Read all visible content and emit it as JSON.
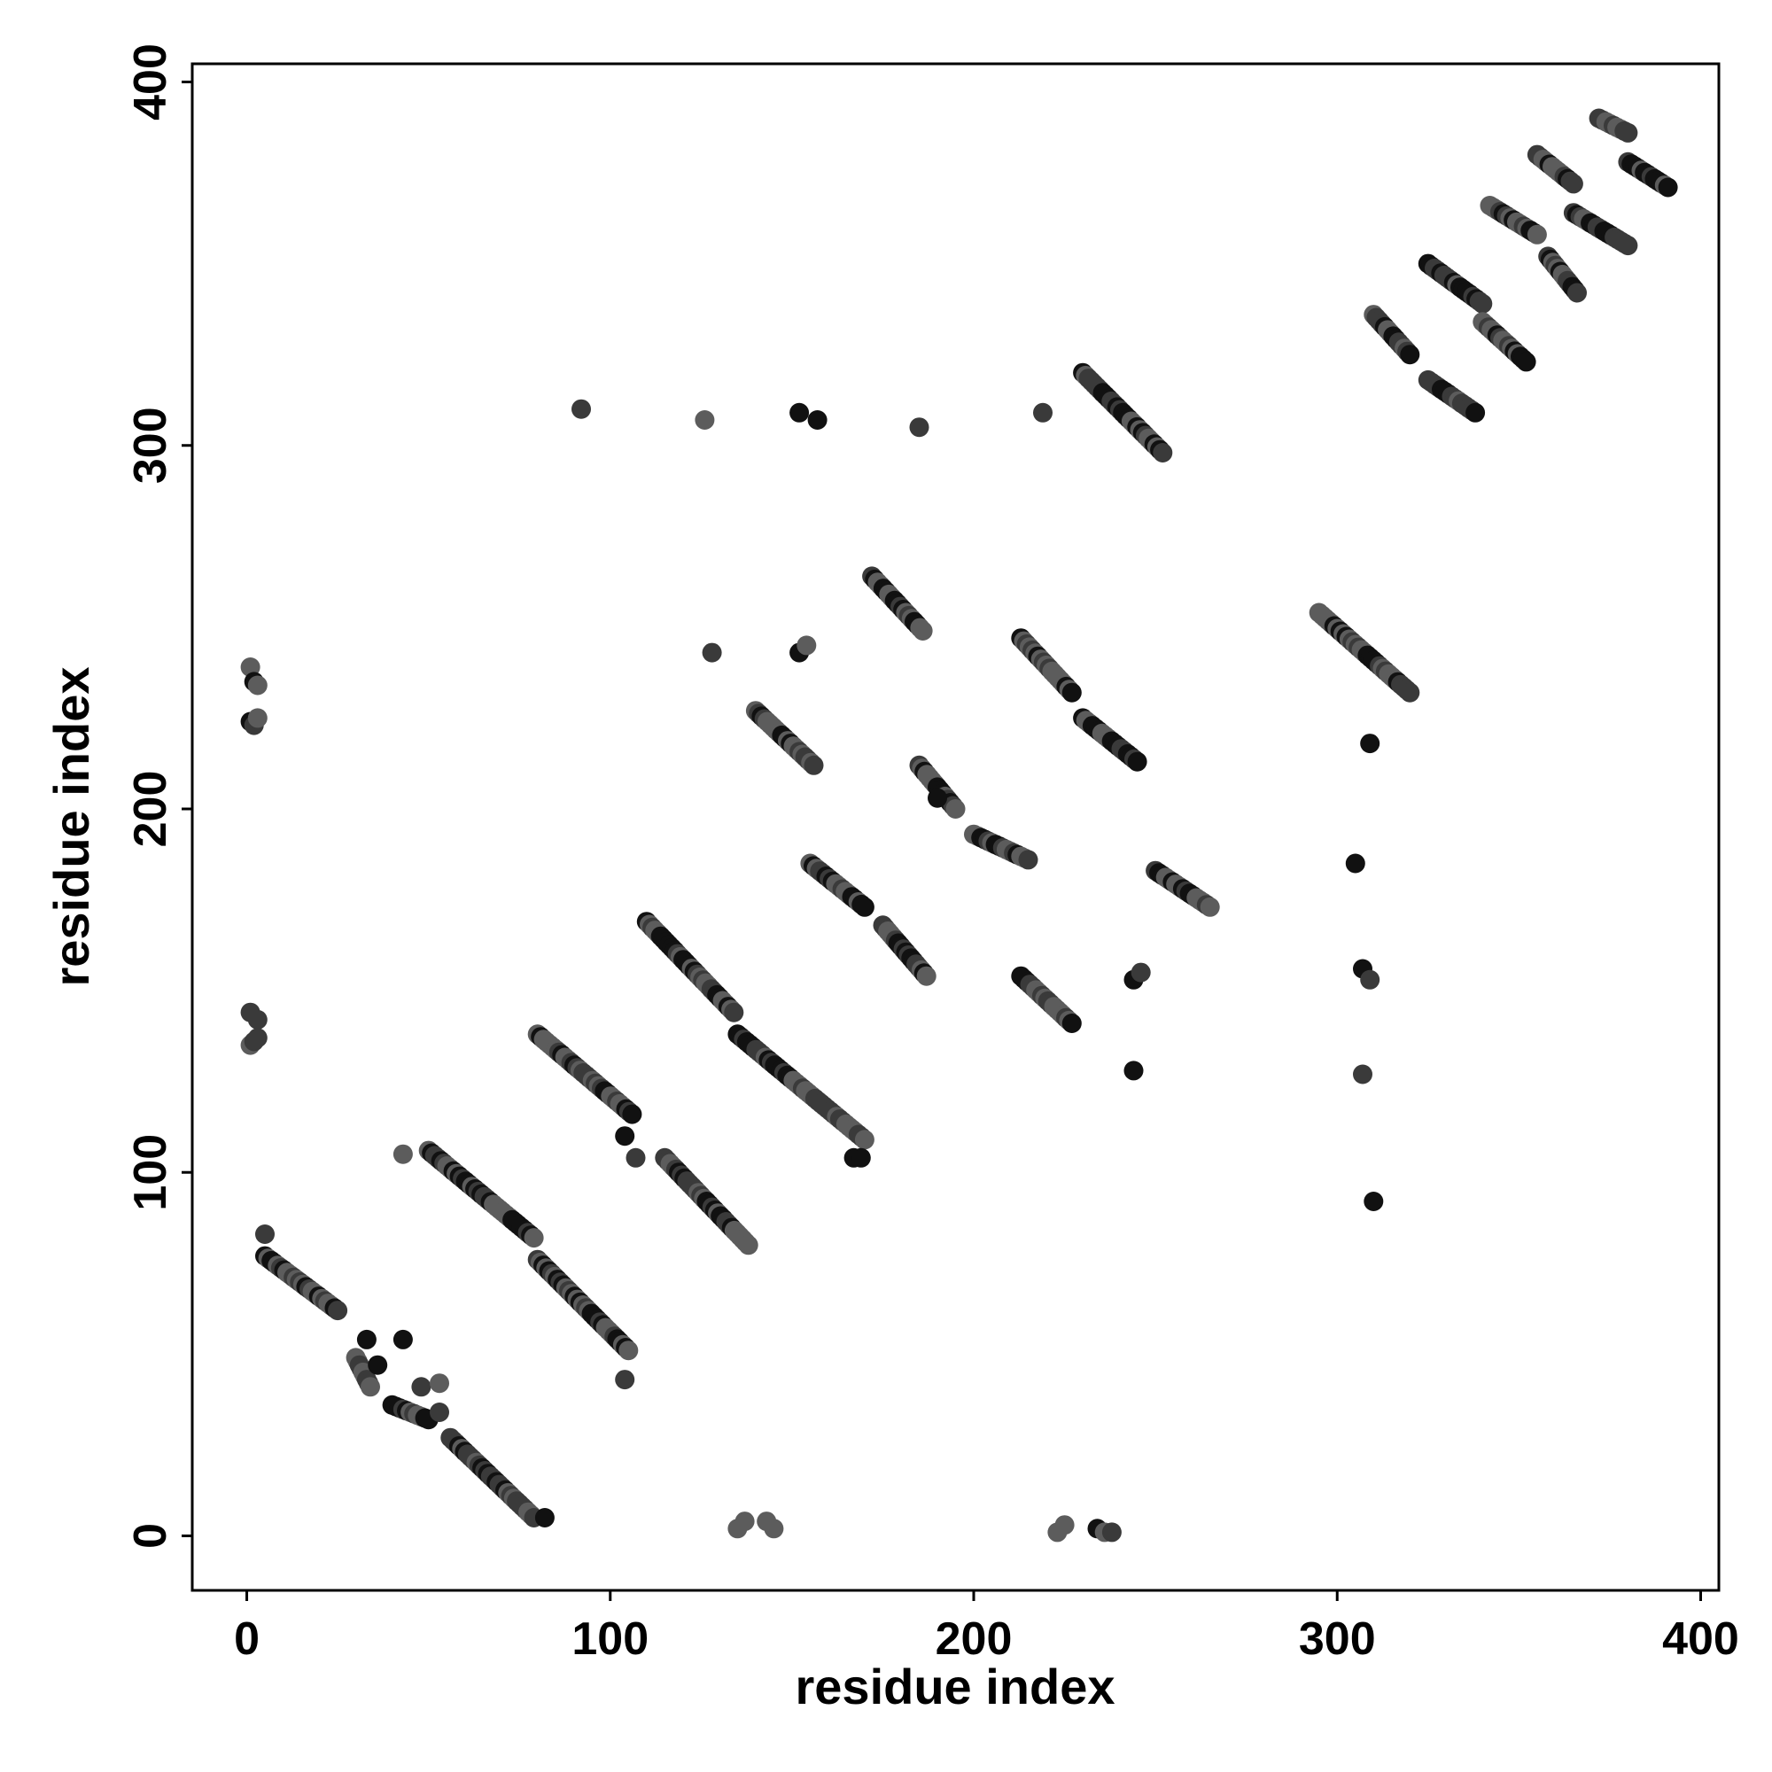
{
  "chart_data": {
    "type": "scatter",
    "xlabel": "residue index",
    "ylabel": "residue index",
    "xlim": [
      -15,
      405
    ],
    "ylim": [
      -15,
      405
    ],
    "x_ticks": [
      "0",
      "100",
      "200",
      "300",
      "400"
    ],
    "y_ticks": [
      "0",
      "100",
      "200",
      "300",
      "400"
    ],
    "grid": false,
    "colors": {
      "marker_dark": "#111111",
      "marker_mid": "#3a3a3a",
      "marker_light": "#5c5c5c",
      "frame": "#000000"
    },
    "segments": [
      [
        5,
        77,
        25,
        62
      ],
      [
        30,
        49,
        34,
        41
      ],
      [
        40,
        36,
        50,
        32
      ],
      [
        56,
        27,
        79,
        5
      ],
      [
        50,
        106,
        79,
        82
      ],
      [
        80,
        76,
        105,
        51
      ],
      [
        80,
        138,
        106,
        116
      ],
      [
        115,
        104,
        138,
        80
      ],
      [
        110,
        169,
        134,
        144
      ],
      [
        135,
        138,
        170,
        109
      ],
      [
        140,
        227,
        156,
        212
      ],
      [
        155,
        185,
        170,
        173
      ],
      [
        172,
        264,
        186,
        249
      ],
      [
        175,
        168,
        187,
        154
      ],
      [
        213,
        247,
        227,
        232
      ],
      [
        230,
        225,
        245,
        213
      ],
      [
        213,
        154,
        227,
        141
      ],
      [
        230,
        320,
        252,
        298
      ],
      [
        250,
        183,
        265,
        173
      ],
      [
        295,
        254,
        320,
        232
      ],
      [
        310,
        336,
        320,
        325
      ],
      [
        325,
        318,
        338,
        309
      ],
      [
        325,
        350,
        340,
        339
      ],
      [
        340,
        334,
        352,
        323
      ],
      [
        342,
        366,
        355,
        358
      ],
      [
        355,
        380,
        365,
        372
      ],
      [
        358,
        352,
        366,
        342
      ],
      [
        365,
        364,
        380,
        355
      ],
      [
        372,
        390,
        380,
        386
      ],
      [
        380,
        378,
        391,
        371
      ],
      [
        185,
        212,
        195,
        200
      ],
      [
        200,
        193,
        215,
        186
      ]
    ],
    "points": [
      [
        1,
        239
      ],
      [
        2,
        235
      ],
      [
        3,
        234
      ],
      [
        1,
        224
      ],
      [
        2,
        223
      ],
      [
        3,
        225
      ],
      [
        1,
        144
      ],
      [
        3,
        142
      ],
      [
        1,
        135
      ],
      [
        2,
        136
      ],
      [
        3,
        137
      ],
      [
        5,
        83
      ],
      [
        33,
        54
      ],
      [
        36,
        47
      ],
      [
        43,
        54
      ],
      [
        43,
        105
      ],
      [
        48,
        41
      ],
      [
        53,
        42
      ],
      [
        53,
        34
      ],
      [
        82,
        5
      ],
      [
        92,
        310
      ],
      [
        104,
        43
      ],
      [
        104,
        110
      ],
      [
        107,
        104
      ],
      [
        126,
        307
      ],
      [
        128,
        243
      ],
      [
        152,
        309
      ],
      [
        157,
        307
      ],
      [
        185,
        305
      ],
      [
        219,
        309
      ],
      [
        152,
        243
      ],
      [
        154,
        245
      ],
      [
        190,
        203
      ],
      [
        135,
        2
      ],
      [
        137,
        4
      ],
      [
        143,
        4
      ],
      [
        145,
        2
      ],
      [
        223,
        1
      ],
      [
        225,
        3
      ],
      [
        234,
        2
      ],
      [
        236,
        1
      ],
      [
        238,
        1
      ],
      [
        167,
        104
      ],
      [
        169,
        104
      ],
      [
        244,
        128
      ],
      [
        244,
        153
      ],
      [
        246,
        155
      ],
      [
        305,
        185
      ],
      [
        307,
        156
      ],
      [
        307,
        127
      ],
      [
        309,
        153
      ],
      [
        309,
        218
      ],
      [
        310,
        92
      ]
    ]
  }
}
